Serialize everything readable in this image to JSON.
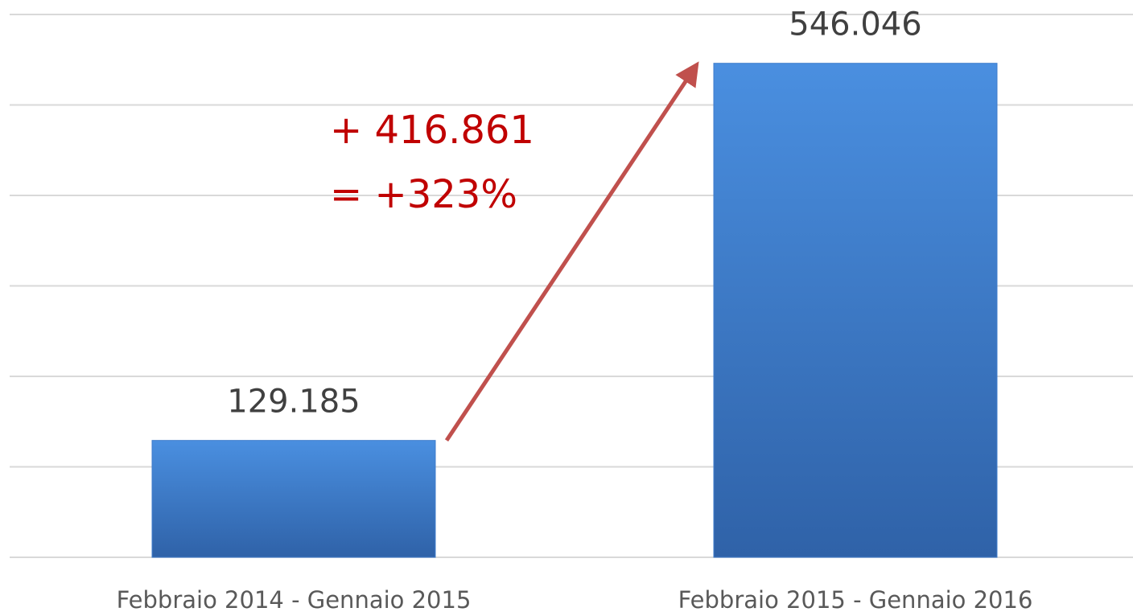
{
  "chart_data": {
    "type": "bar",
    "categories": [
      "Febbraio 2014 - Gennaio 2015",
      "Febbraio 2015 - Gennaio 2016"
    ],
    "values": [
      129185,
      546046
    ],
    "value_labels": [
      "129.185",
      "546.046"
    ],
    "color": "#3f7ccc",
    "ylim": [
      0,
      600000
    ],
    "yticks": [
      0,
      100000,
      200000,
      300000,
      400000,
      500000,
      600000
    ],
    "grid": true,
    "annotations": [
      "+ 416.861",
      "= +323%"
    ],
    "annotation_color": "#c00000"
  }
}
